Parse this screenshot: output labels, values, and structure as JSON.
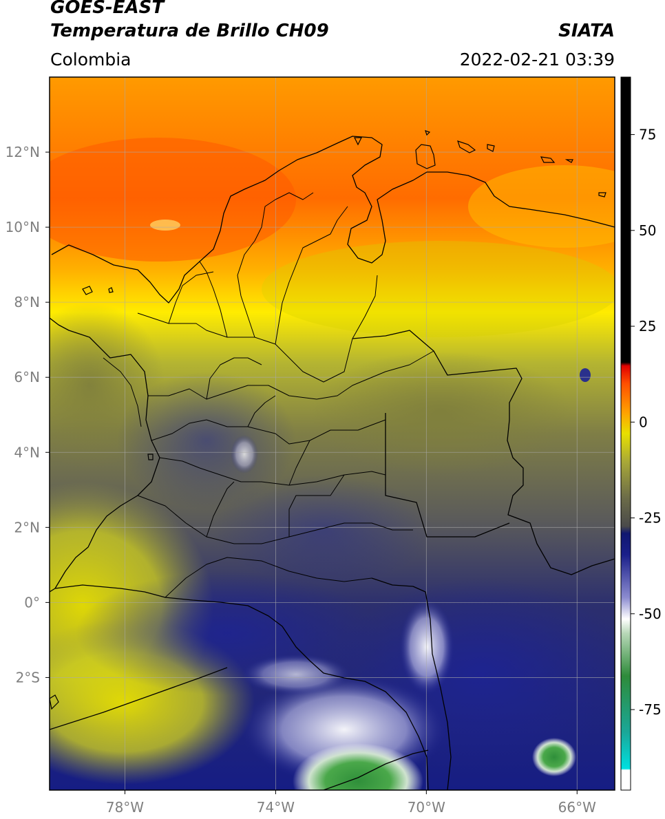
{
  "header": {
    "title_line1": "GOES-EAST",
    "title_line2": "Temperatura de Brillo CH09",
    "brand": "SIATA",
    "region": "Colombia",
    "timestamp": "2022-02-21 03:39"
  },
  "map": {
    "lon_ticks": [
      {
        "lon": -78,
        "label": "78°W"
      },
      {
        "lon": -74,
        "label": "74°W"
      },
      {
        "lon": -70,
        "label": "70°W"
      },
      {
        "lon": -66,
        "label": "66°W"
      }
    ],
    "lat_ticks": [
      {
        "lat": 12,
        "label": "12°N"
      },
      {
        "lat": 10,
        "label": "10°N"
      },
      {
        "lat": 8,
        "label": "8°N"
      },
      {
        "lat": 6,
        "label": "6°N"
      },
      {
        "lat": 4,
        "label": "4°N"
      },
      {
        "lat": 2,
        "label": "2°N"
      },
      {
        "lat": 0,
        "label": "0°"
      },
      {
        "lat": -2,
        "label": "2°S"
      }
    ],
    "lon_range": [
      -80,
      -65
    ],
    "lat_range": [
      -5,
      14
    ],
    "colors": {
      "warm": "#ff6a00",
      "mid": "#e8d800",
      "olive": "#8c8c3a",
      "cold": "#1a1f80",
      "coldest": "#3c9a3c",
      "boundary": "#000000",
      "grid": "#aaaaaa"
    }
  },
  "colorbar": {
    "ticks": [
      {
        "value": 75,
        "label": "75"
      },
      {
        "value": 50,
        "label": "50"
      },
      {
        "value": 25,
        "label": "25"
      },
      {
        "value": 0,
        "label": "0"
      },
      {
        "value": -25,
        "label": "-25"
      },
      {
        "value": -50,
        "label": "-50"
      },
      {
        "value": -75,
        "label": "-75"
      }
    ],
    "range": [
      -96,
      90
    ]
  }
}
